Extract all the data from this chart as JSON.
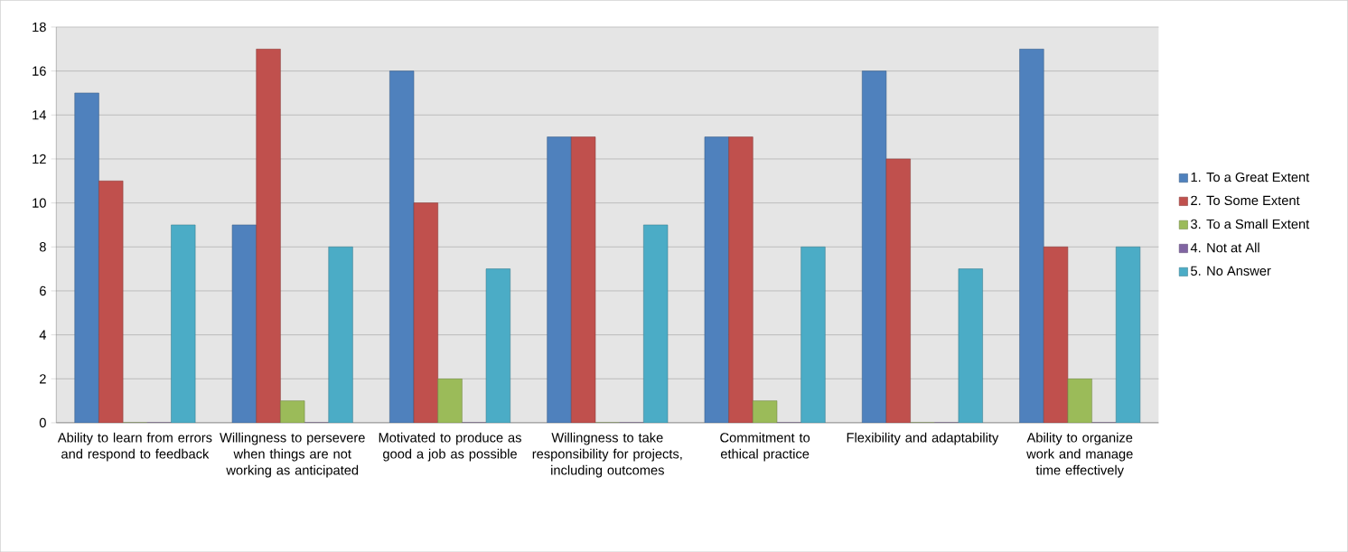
{
  "chart_data": {
    "type": "bar",
    "categories": [
      "Ability to learn from errors and respond to feedback",
      "Willingness to persevere when things are not working as anticipated",
      "Motivated to produce as good a job as possible",
      "Willingness to take responsibility for projects, including outcomes",
      "Commitment to ethical practice",
      "Flexibility and adaptability",
      "Ability to organize work and manage time effectively"
    ],
    "series": [
      {
        "name": "1. To a Great Extent",
        "color": "#4f81bd",
        "values": [
          15,
          9,
          16,
          13,
          13,
          16,
          17
        ]
      },
      {
        "name": "2. To Some Extent",
        "color": "#c0504d",
        "values": [
          11,
          17,
          10,
          13,
          13,
          12,
          8
        ]
      },
      {
        "name": "3. To a Small Extent",
        "color": "#9bbb59",
        "values": [
          0,
          1,
          2,
          0,
          1,
          0,
          2
        ]
      },
      {
        "name": "4. Not at All",
        "color": "#8064a2",
        "values": [
          0,
          0,
          0,
          0,
          0,
          0,
          0
        ]
      },
      {
        "name": "5. No Answer",
        "color": "#4bacc6",
        "values": [
          9,
          8,
          7,
          9,
          8,
          7,
          8
        ]
      }
    ],
    "ylim": [
      0,
      18
    ],
    "yticks": [
      0,
      2,
      4,
      6,
      8,
      10,
      12,
      14,
      16,
      18
    ],
    "grid": "y",
    "legend": "right"
  }
}
